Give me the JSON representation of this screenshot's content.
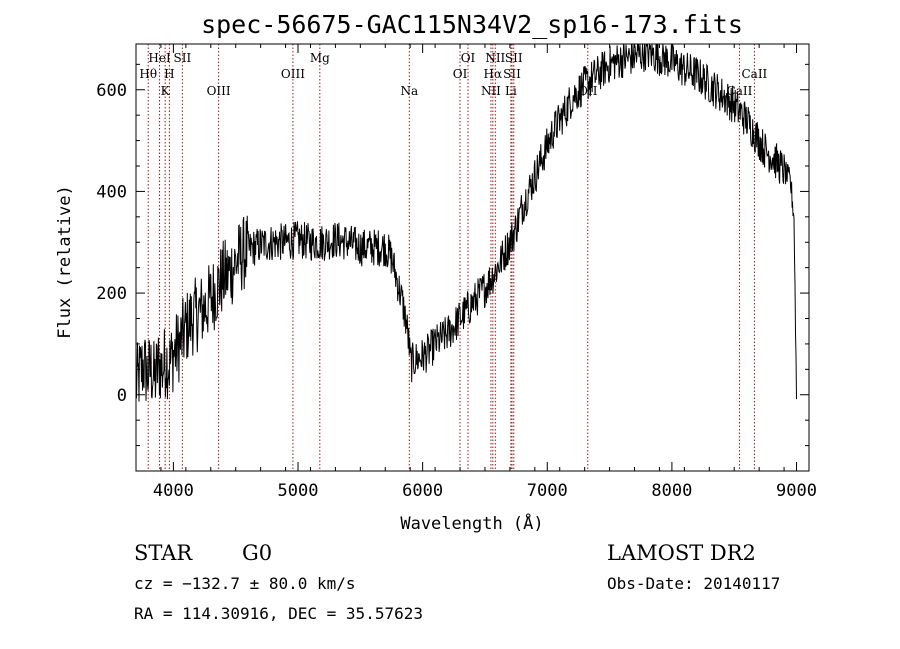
{
  "title": "spec-56675-GAC115N34V2_sp16-173.fits",
  "info": {
    "class": "STAR",
    "subclass": "G0",
    "survey": "LAMOST DR2",
    "cz": "cz = −132.7 ± 80.0 km/s",
    "obs_date": "Obs-Date: 20140117",
    "coords": "RA = 114.30916, DEC =  35.57623"
  },
  "colors": {
    "line_marker": "#a01818",
    "spectrum": "#000000"
  },
  "chart_data": {
    "type": "line",
    "title": "spec-56675-GAC115N34V2_sp16-173.fits",
    "xlabel": "Wavelength (Å)",
    "ylabel": "Flux (relative)",
    "xlim": [
      3700,
      9100
    ],
    "ylim": [
      -150,
      690
    ],
    "x_ticks": [
      4000,
      5000,
      6000,
      7000,
      8000,
      9000
    ],
    "y_ticks": [
      0,
      200,
      400,
      600
    ],
    "grid": false,
    "noise_amplitude_fraction": 0.05,
    "series": [
      {
        "x": [
          3700,
          3730,
          3760,
          3790,
          3820,
          3850,
          3880,
          3910,
          3940,
          3970,
          4000,
          4050,
          4100,
          4150,
          4200,
          4250,
          4300,
          4350,
          4400,
          4450,
          4500,
          4550,
          4600,
          4650,
          4700,
          4800,
          4900,
          5000,
          5100,
          5200,
          5300,
          5400,
          5500,
          5600,
          5700,
          5750,
          5800,
          5840,
          5870,
          5890,
          5900,
          5910,
          5920,
          5950,
          6000,
          6050,
          6100,
          6200,
          6300,
          6400,
          6500,
          6600,
          6650,
          6700,
          6750,
          6800,
          6850,
          6900,
          6950,
          7000,
          7050,
          7100,
          7150,
          7200,
          7300,
          7400,
          7500,
          7600,
          7700,
          7750,
          7800,
          7850,
          7900,
          8000,
          8100,
          8200,
          8300,
          8400,
          8500,
          8550,
          8600,
          8650,
          8700,
          8750,
          8800,
          8850,
          8900,
          8950,
          8980,
          9000
        ],
        "y": [
          20,
          40,
          60,
          40,
          50,
          30,
          60,
          50,
          70,
          60,
          80,
          100,
          130,
          150,
          160,
          170,
          190,
          210,
          230,
          240,
          260,
          275,
          285,
          290,
          295,
          300,
          300,
          305,
          300,
          300,
          305,
          300,
          290,
          290,
          290,
          270,
          220,
          180,
          140,
          100,
          70,
          60,
          65,
          70,
          75,
          85,
          100,
          120,
          150,
          180,
          210,
          250,
          275,
          300,
          330,
          370,
          400,
          430,
          460,
          490,
          520,
          540,
          560,
          585,
          610,
          630,
          650,
          660,
          665,
          670,
          675,
          670,
          665,
          655,
          640,
          630,
          610,
          590,
          570,
          555,
          540,
          520,
          500,
          480,
          470,
          455,
          440,
          420,
          350,
          0
        ]
      }
    ],
    "spectral_lines": [
      {
        "label": "Hθ",
        "wavelength": 3798,
        "tier": 2
      },
      {
        "label": "HeI",
        "wavelength": 3889,
        "tier": 1
      },
      {
        "label": "K",
        "wavelength": 3934,
        "tier": 3
      },
      {
        "label": "H",
        "wavelength": 3968,
        "tier": 2
      },
      {
        "label": "SII",
        "wavelength": 4072,
        "tier": 1
      },
      {
        "label": "OIII",
        "wavelength": 4363,
        "tier": 3
      },
      {
        "label": "OIII",
        "wavelength": 4959,
        "tier": 2
      },
      {
        "label": "Mg",
        "wavelength": 5175,
        "tier": 1
      },
      {
        "label": "Na",
        "wavelength": 5893,
        "tier": 3
      },
      {
        "label": "OI",
        "wavelength": 6300,
        "tier": 2
      },
      {
        "label": "OI",
        "wavelength": 6364,
        "tier": 1
      },
      {
        "label": "NII",
        "wavelength": 6548,
        "tier": 3
      },
      {
        "label": "Hα",
        "wavelength": 6563,
        "tier": 2
      },
      {
        "label": "NII",
        "wavelength": 6583,
        "tier": 1
      },
      {
        "label": "Li",
        "wavelength": 6708,
        "tier": 3
      },
      {
        "label": "SII",
        "wavelength": 6717,
        "tier": 2
      },
      {
        "label": "SII",
        "wavelength": 6731,
        "tier": 1
      },
      {
        "label": "OII",
        "wavelength": 7325,
        "tier": 3
      },
      {
        "label": "CaII",
        "wavelength": 8542,
        "tier": 3
      },
      {
        "label": "CaII",
        "wavelength": 8662,
        "tier": 2
      }
    ]
  }
}
